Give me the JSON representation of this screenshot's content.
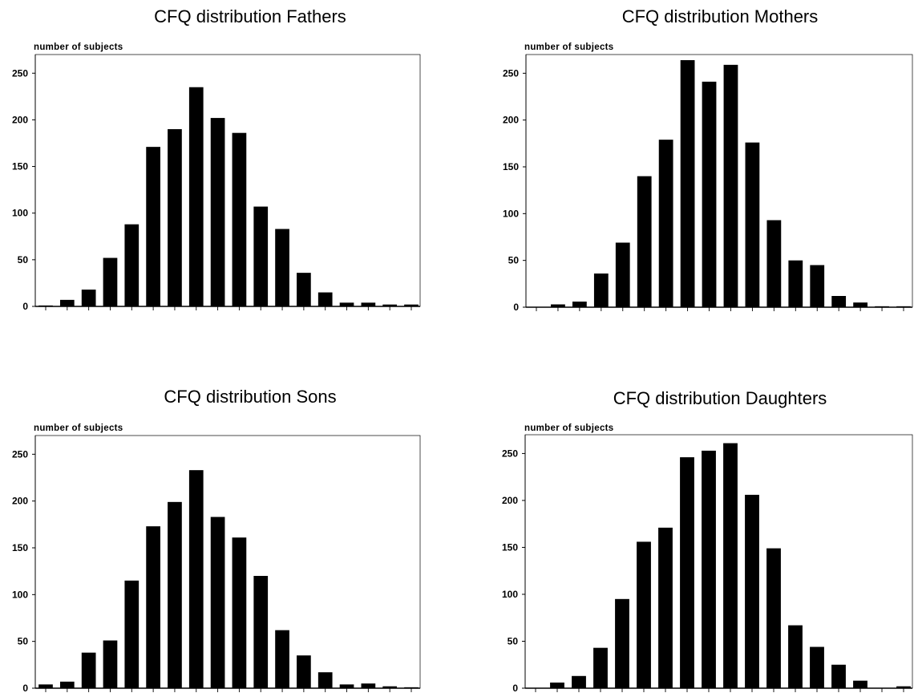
{
  "chart_data": [
    {
      "type": "bar",
      "title": "CFQ distribution Fathers",
      "ylabel": "number of subjects",
      "xlabel": "",
      "ylim": [
        0,
        270
      ],
      "yticks": [
        0,
        50,
        100,
        150,
        200,
        250
      ],
      "grid": false,
      "values": [
        1,
        7,
        18,
        52,
        88,
        171,
        190,
        235,
        202,
        186,
        107,
        83,
        36,
        15,
        4,
        4,
        2,
        2
      ]
    },
    {
      "type": "bar",
      "title": "CFQ distribution Mothers",
      "ylabel": "number of subjects",
      "xlabel": "",
      "ylim": [
        0,
        270
      ],
      "yticks": [
        0,
        50,
        100,
        150,
        200,
        250
      ],
      "grid": false,
      "values": [
        0,
        3,
        6,
        36,
        69,
        140,
        179,
        264,
        241,
        259,
        176,
        93,
        50,
        45,
        12,
        5,
        1,
        1
      ]
    },
    {
      "type": "bar",
      "title": "CFQ distribution Sons",
      "ylabel": "number of subjects",
      "xlabel": "",
      "ylim": [
        0,
        270
      ],
      "yticks": [
        0,
        50,
        100,
        150,
        200,
        250
      ],
      "grid": false,
      "values": [
        4,
        7,
        38,
        51,
        115,
        173,
        199,
        233,
        183,
        161,
        120,
        62,
        35,
        17,
        4,
        5,
        2,
        1
      ]
    },
    {
      "type": "bar",
      "title": "CFQ distribution Daughters",
      "ylabel": "number of subjects",
      "xlabel": "",
      "ylim": [
        0,
        270
      ],
      "yticks": [
        0,
        50,
        100,
        150,
        200,
        250
      ],
      "grid": false,
      "values": [
        0,
        6,
        13,
        43,
        95,
        156,
        171,
        246,
        253,
        261,
        206,
        149,
        67,
        44,
        25,
        8,
        0,
        2
      ]
    }
  ]
}
